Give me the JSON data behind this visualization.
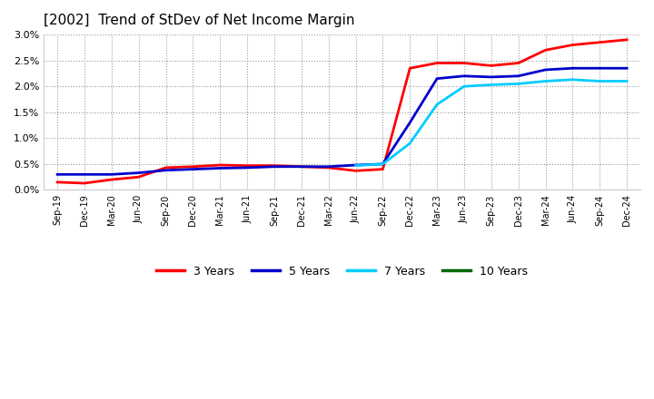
{
  "title": "[2002]  Trend of StDev of Net Income Margin",
  "x_labels": [
    "Sep-19",
    "Dec-19",
    "Mar-20",
    "Jun-20",
    "Sep-20",
    "Dec-20",
    "Mar-21",
    "Jun-21",
    "Sep-21",
    "Dec-21",
    "Mar-22",
    "Jun-22",
    "Sep-22",
    "Dec-22",
    "Mar-23",
    "Jun-23",
    "Sep-23",
    "Dec-23",
    "Mar-24",
    "Jun-24",
    "Sep-24",
    "Dec-24"
  ],
  "series": {
    "3 Years": {
      "color": "#FF0000",
      "values": [
        0.0015,
        0.0013,
        0.002,
        0.0025,
        0.0043,
        0.0045,
        0.0048,
        0.0047,
        0.0047,
        0.0045,
        0.0043,
        0.0037,
        0.004,
        0.0235,
        0.0245,
        0.0245,
        0.024,
        0.0245,
        0.027,
        0.028,
        0.0285,
        0.029
      ]
    },
    "5 Years": {
      "color": "#0000CD",
      "values": [
        0.003,
        0.003,
        0.003,
        0.0033,
        0.0038,
        0.004,
        0.0042,
        0.0043,
        0.0045,
        0.0045,
        0.0045,
        0.0048,
        0.005,
        0.013,
        0.0215,
        0.022,
        0.0218,
        0.022,
        0.0232,
        0.0235,
        0.0235,
        0.0235
      ]
    },
    "7 Years": {
      "color": "#00CCFF",
      "values": [
        null,
        null,
        null,
        null,
        null,
        null,
        null,
        null,
        null,
        null,
        null,
        0.0047,
        0.005,
        0.009,
        0.0165,
        0.02,
        0.0203,
        0.0205,
        0.021,
        0.0213,
        0.021,
        0.021
      ]
    },
    "10 Years": {
      "color": "#006600",
      "values": [
        null,
        null,
        null,
        null,
        null,
        null,
        null,
        null,
        null,
        null,
        null,
        null,
        null,
        null,
        null,
        null,
        null,
        null,
        null,
        null,
        null,
        null
      ]
    }
  },
  "ylim": [
    0.0,
    0.03
  ],
  "yticks": [
    0.0,
    0.005,
    0.01,
    0.015,
    0.02,
    0.025,
    0.03
  ],
  "ytick_labels": [
    "0.0%",
    "0.5%",
    "1.0%",
    "1.5%",
    "2.0%",
    "2.5%",
    "3.0%"
  ],
  "background_color": "#FFFFFF",
  "grid_color": "#999999",
  "legend_labels": [
    "3 Years",
    "5 Years",
    "7 Years",
    "10 Years"
  ],
  "legend_colors": [
    "#FF0000",
    "#0000CD",
    "#00CCFF",
    "#006600"
  ]
}
